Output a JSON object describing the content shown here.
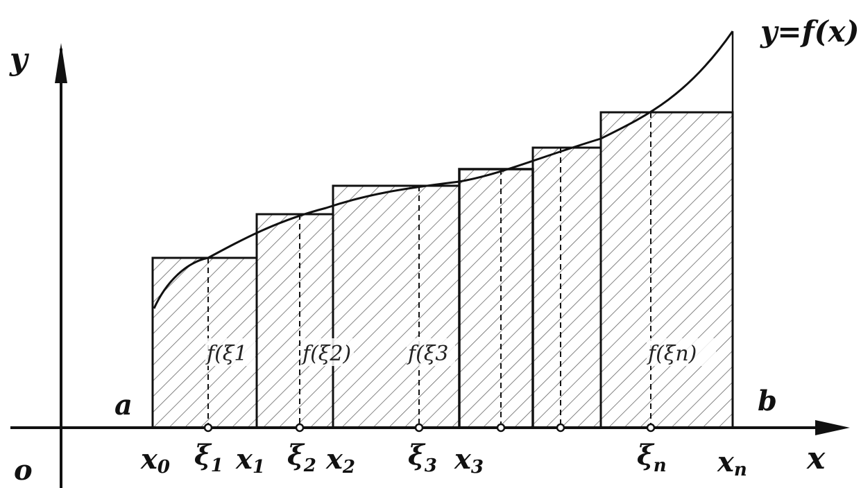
{
  "diagram": {
    "curve_label": "y=f(x)",
    "y_axis_label": "y",
    "x_axis_label": "x",
    "origin_label": "o",
    "a_label": "a",
    "b_label": "b",
    "x_ticks": [
      {
        "base": "x",
        "sub": "0"
      },
      {
        "base": "x",
        "sub": "1"
      },
      {
        "base": "x",
        "sub": "2"
      },
      {
        "base": "x",
        "sub": "3"
      },
      {
        "base": "x",
        "sub": "n"
      }
    ],
    "xi_ticks": [
      {
        "base": "ξ",
        "sub": "1"
      },
      {
        "base": "ξ",
        "sub": "2"
      },
      {
        "base": "ξ",
        "sub": "3"
      },
      {
        "base": "ξ",
        "sub": "n"
      }
    ],
    "f_labels": [
      "f(ξ1",
      "f(ξ2)",
      "f(ξ3",
      "f(ξn)"
    ],
    "colors": {
      "stroke": "#111111",
      "hatch": "#555555",
      "background": "#ffffff"
    }
  }
}
